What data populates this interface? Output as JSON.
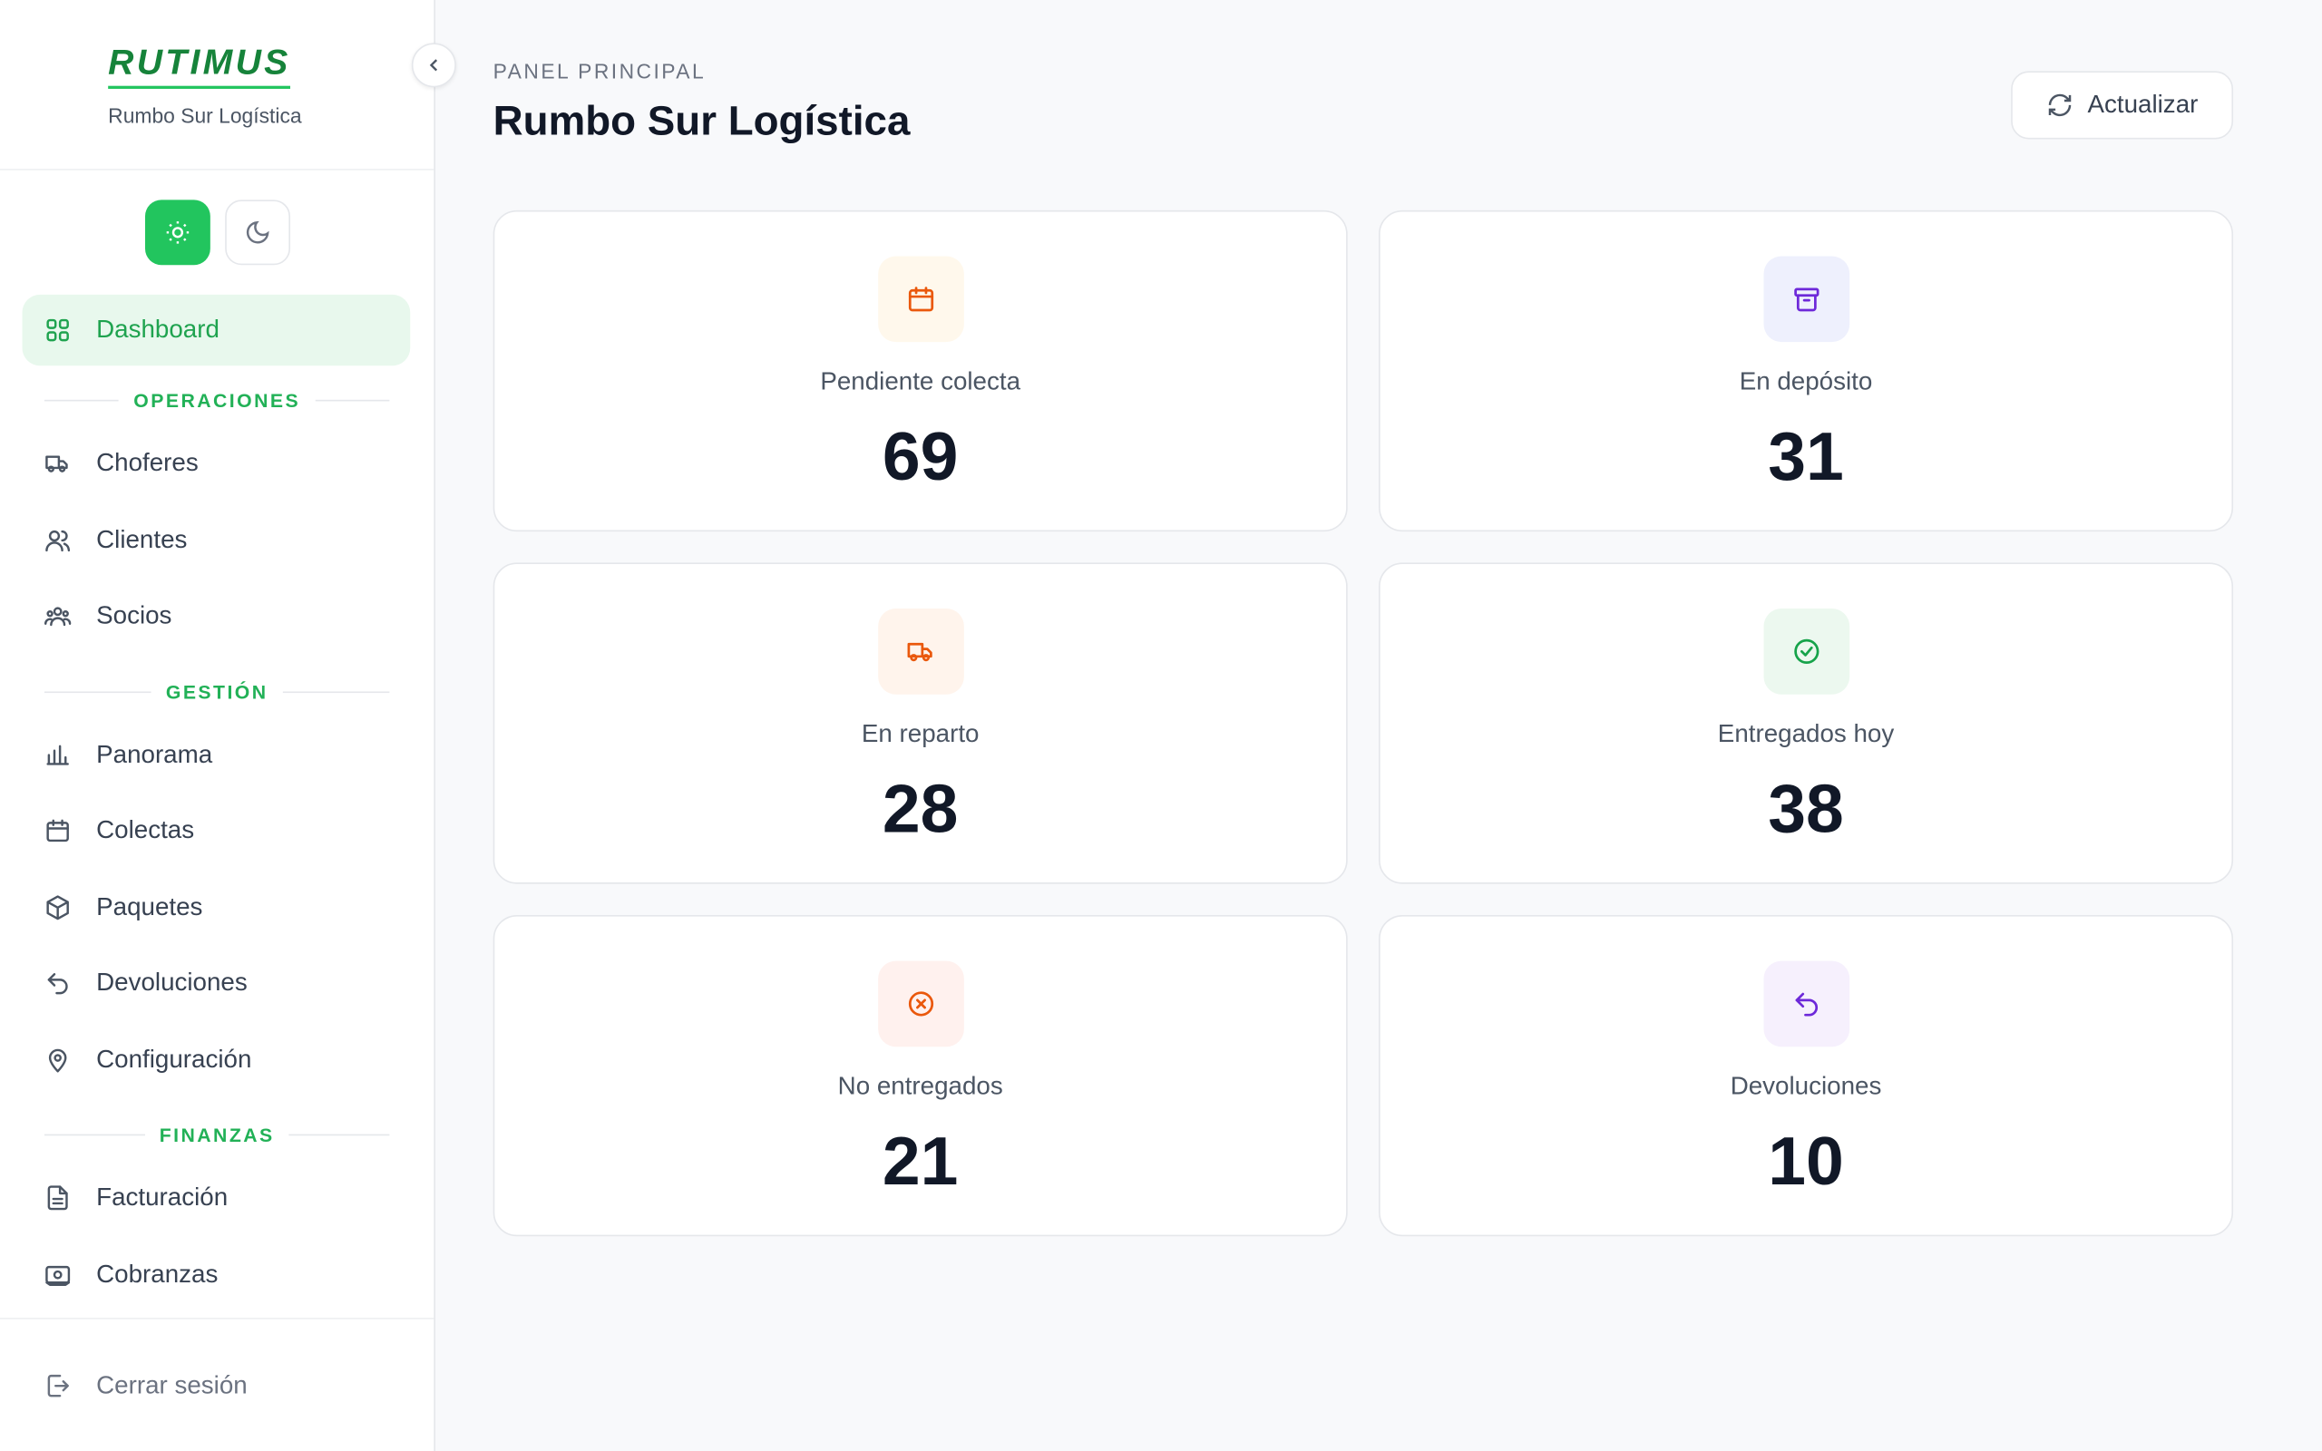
{
  "sidebar": {
    "logo": "RUTIMUS",
    "subtitle": "Rumbo Sur Logística",
    "active": "Dashboard",
    "groups": [
      {
        "title": "OPERACIONES",
        "items": [
          "Choferes",
          "Clientes",
          "Socios"
        ]
      },
      {
        "title": "GESTIÓN",
        "items": [
          "Panorama",
          "Colectas",
          "Paquetes",
          "Devoluciones",
          "Configuración"
        ]
      },
      {
        "title": "FINANZAS",
        "items": [
          "Facturación",
          "Cobranzas"
        ]
      }
    ],
    "logout": "Cerrar sesión"
  },
  "header": {
    "eyebrow": "PANEL PRINCIPAL",
    "title": "Rumbo Sur Logística",
    "button": "Actualizar"
  },
  "cards": [
    {
      "label": "Pendiente colecta",
      "value": "69"
    },
    {
      "label": "En depósito",
      "value": "31"
    },
    {
      "label": "En reparto",
      "value": "28"
    },
    {
      "label": "Entregados hoy",
      "value": "38"
    },
    {
      "label": "No entregados",
      "value": "21"
    },
    {
      "label": "Devoluciones",
      "value": "10"
    }
  ]
}
